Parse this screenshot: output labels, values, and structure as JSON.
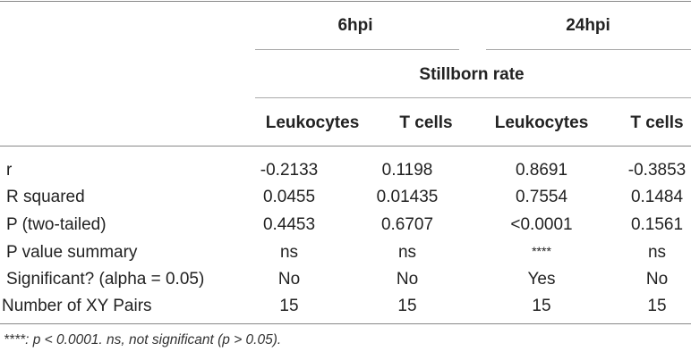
{
  "headers": {
    "group1": "6hpi",
    "group2": "24hpi",
    "subheader": "Stillborn rate",
    "columns": [
      "Leukocytes",
      "T cells",
      "Leukocytes",
      "T cells"
    ]
  },
  "rows": [
    {
      "label": "r",
      "values": [
        "-0.2133",
        "0.1198",
        "0.8691",
        "-0.3853"
      ]
    },
    {
      "label": "R squared",
      "values": [
        "0.0455",
        "0.01435",
        "0.7554",
        "0.1484"
      ]
    },
    {
      "label": "P (two-tailed)",
      "values": [
        "0.4453",
        "0.6707",
        "<0.0001",
        "0.1561"
      ]
    },
    {
      "label": "P value summary",
      "values": [
        "ns",
        "ns",
        "****",
        "ns"
      ]
    },
    {
      "label": "Significant? (alpha = 0.05)",
      "values": [
        "No",
        "No",
        "Yes",
        "No"
      ]
    },
    {
      "label": "Number of XY Pairs",
      "values": [
        "15",
        "15",
        "15",
        "15"
      ]
    }
  ],
  "footnote": "****: p < 0.0001. ns, not significant (p > 0.05)."
}
